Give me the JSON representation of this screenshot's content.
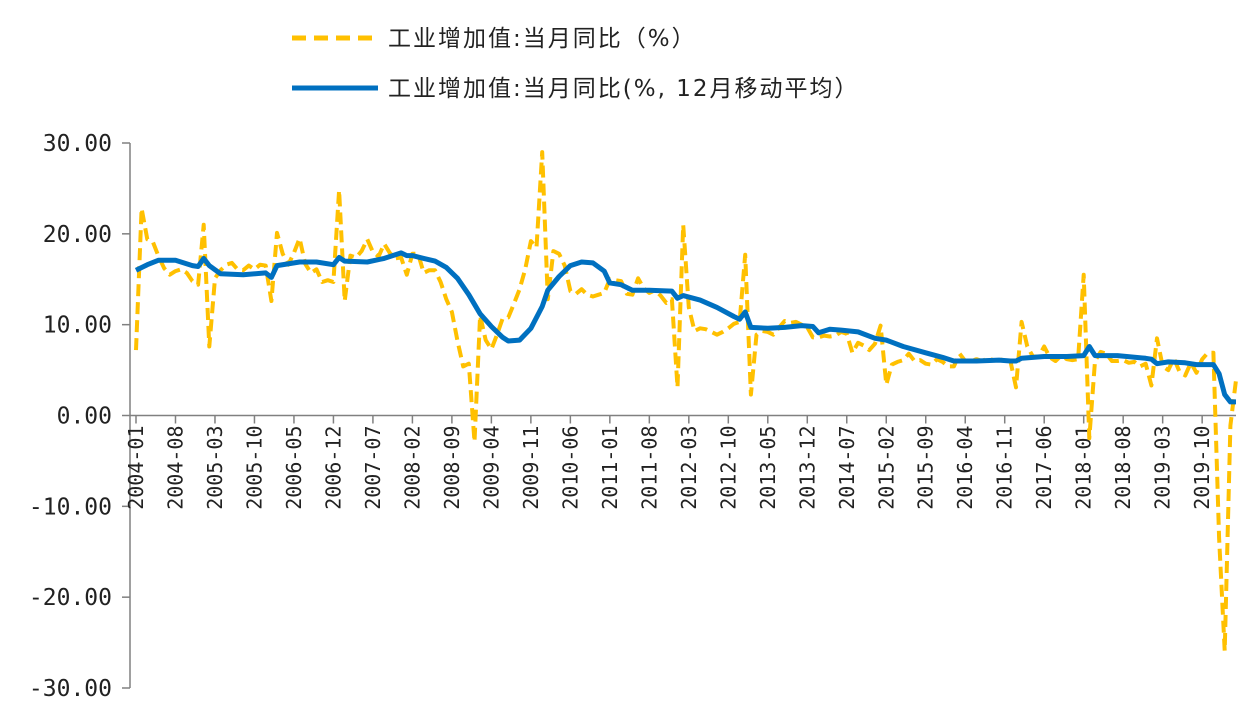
{
  "chart_data": {
    "type": "line",
    "title": "",
    "xlabel": "",
    "ylabel": "",
    "ylim": [
      -30,
      30
    ],
    "yticks": [
      -30,
      -20,
      -10,
      0,
      10,
      20,
      30
    ],
    "ytick_labels": [
      "-30.00",
      "-20.00",
      "-10.00",
      "0.00",
      "10.00",
      "20.00",
      "30.00"
    ],
    "x_start": "2004-01",
    "x_end": "2020-04",
    "xtick_labels": [
      "2004-01",
      "2004-08",
      "2005-03",
      "2005-10",
      "2006-05",
      "2006-12",
      "2007-07",
      "2008-02",
      "2008-09",
      "2009-04",
      "2009-11",
      "2010-06",
      "2011-01",
      "2011-08",
      "2012-03",
      "2012-10",
      "2013-05",
      "2013-12",
      "2014-07",
      "2015-02",
      "2015-09",
      "2016-04",
      "2016-11",
      "2017-06",
      "2018-01",
      "2018-08",
      "2019-03",
      "2019-10"
    ],
    "legend_position": "top",
    "grid": false,
    "series": [
      {
        "name": "工业增加值:当月同比（%）",
        "color": "#FFC000",
        "style": "dashed",
        "points": [
          [
            "2004-01",
            7.2
          ],
          [
            "2004-02",
            22.8
          ],
          [
            "2004-03",
            19.4
          ],
          [
            "2004-04",
            19.1
          ],
          [
            "2004-05",
            17.5
          ],
          [
            "2004-06",
            16.2
          ],
          [
            "2004-07",
            15.5
          ],
          [
            "2004-08",
            15.9
          ],
          [
            "2004-09",
            16.1
          ],
          [
            "2004-10",
            15.7
          ],
          [
            "2004-11",
            14.8
          ],
          [
            "2004-12",
            14.4
          ],
          [
            "2005-01",
            21.0
          ],
          [
            "2005-02",
            7.6
          ],
          [
            "2005-03",
            15.1
          ],
          [
            "2005-04",
            16.0
          ],
          [
            "2005-05",
            16.6
          ],
          [
            "2005-06",
            16.8
          ],
          [
            "2005-07",
            16.1
          ],
          [
            "2005-08",
            16.0
          ],
          [
            "2005-09",
            16.5
          ],
          [
            "2005-10",
            16.1
          ],
          [
            "2005-11",
            16.6
          ],
          [
            "2005-12",
            16.5
          ],
          [
            "2006-01",
            12.6
          ],
          [
            "2006-02",
            20.1
          ],
          [
            "2006-03",
            17.8
          ],
          [
            "2006-04",
            16.6
          ],
          [
            "2006-05",
            17.9
          ],
          [
            "2006-06",
            19.5
          ],
          [
            "2006-07",
            16.7
          ],
          [
            "2006-08",
            15.7
          ],
          [
            "2006-09",
            16.1
          ],
          [
            "2006-10",
            14.7
          ],
          [
            "2006-11",
            14.9
          ],
          [
            "2006-12",
            14.7
          ],
          [
            "2007-01",
            24.8
          ],
          [
            "2007-02",
            12.6
          ],
          [
            "2007-03",
            17.6
          ],
          [
            "2007-04",
            17.4
          ],
          [
            "2007-05",
            18.1
          ],
          [
            "2007-06",
            19.4
          ],
          [
            "2007-07",
            18.0
          ],
          [
            "2007-08",
            17.5
          ],
          [
            "2007-09",
            18.9
          ],
          [
            "2007-10",
            17.9
          ],
          [
            "2007-11",
            17.3
          ],
          [
            "2007-12",
            17.4
          ],
          [
            "2008-01",
            15.5
          ],
          [
            "2008-02",
            17.8
          ],
          [
            "2008-03",
            17.8
          ],
          [
            "2008-04",
            15.7
          ],
          [
            "2008-05",
            16.0
          ],
          [
            "2008-06",
            16.0
          ],
          [
            "2008-07",
            14.7
          ],
          [
            "2008-08",
            12.8
          ],
          [
            "2008-09",
            11.4
          ],
          [
            "2008-10",
            8.2
          ],
          [
            "2008-11",
            5.4
          ],
          [
            "2008-12",
            5.7
          ],
          [
            "2009-01",
            -2.9
          ],
          [
            "2009-02",
            11.0
          ],
          [
            "2009-03",
            8.3
          ],
          [
            "2009-04",
            7.3
          ],
          [
            "2009-05",
            8.9
          ],
          [
            "2009-06",
            10.7
          ],
          [
            "2009-07",
            10.8
          ],
          [
            "2009-08",
            12.3
          ],
          [
            "2009-09",
            13.9
          ],
          [
            "2009-10",
            16.1
          ],
          [
            "2009-11",
            19.2
          ],
          [
            "2009-12",
            18.5
          ],
          [
            "2010-01",
            29.0
          ],
          [
            "2010-02",
            12.8
          ],
          [
            "2010-03",
            18.1
          ],
          [
            "2010-04",
            17.8
          ],
          [
            "2010-05",
            16.5
          ],
          [
            "2010-06",
            13.7
          ],
          [
            "2010-07",
            13.4
          ],
          [
            "2010-08",
            13.9
          ],
          [
            "2010-09",
            13.3
          ],
          [
            "2010-10",
            13.1
          ],
          [
            "2010-11",
            13.3
          ],
          [
            "2010-12",
            13.5
          ],
          [
            "2011-01",
            15.0
          ],
          [
            "2011-02",
            14.9
          ],
          [
            "2011-03",
            14.8
          ],
          [
            "2011-04",
            13.4
          ],
          [
            "2011-05",
            13.3
          ],
          [
            "2011-06",
            15.1
          ],
          [
            "2011-07",
            14.0
          ],
          [
            "2011-08",
            13.5
          ],
          [
            "2011-09",
            13.8
          ],
          [
            "2011-10",
            13.2
          ],
          [
            "2011-11",
            12.4
          ],
          [
            "2011-12",
            12.8
          ],
          [
            "2012-01",
            3.1
          ],
          [
            "2012-02",
            21.0
          ],
          [
            "2012-03",
            11.9
          ],
          [
            "2012-04",
            9.3
          ],
          [
            "2012-05",
            9.6
          ],
          [
            "2012-06",
            9.5
          ],
          [
            "2012-07",
            9.2
          ],
          [
            "2012-08",
            8.9
          ],
          [
            "2012-09",
            9.2
          ],
          [
            "2012-10",
            9.6
          ],
          [
            "2012-11",
            10.1
          ],
          [
            "2012-12",
            10.3
          ],
          [
            "2013-01",
            17.7
          ],
          [
            "2013-02",
            2.3
          ],
          [
            "2013-03",
            8.9
          ],
          [
            "2013-04",
            9.3
          ],
          [
            "2013-05",
            9.2
          ],
          [
            "2013-06",
            8.9
          ],
          [
            "2013-07",
            9.7
          ],
          [
            "2013-08",
            10.4
          ],
          [
            "2013-09",
            10.2
          ],
          [
            "2013-10",
            10.3
          ],
          [
            "2013-11",
            10.0
          ],
          [
            "2013-12",
            9.7
          ],
          [
            "2014-01",
            8.6
          ],
          [
            "2014-02",
            8.6
          ],
          [
            "2014-03",
            8.8
          ],
          [
            "2014-04",
            8.7
          ],
          [
            "2014-05",
            8.8
          ],
          [
            "2014-06",
            9.2
          ],
          [
            "2014-07",
            9.0
          ],
          [
            "2014-08",
            6.9
          ],
          [
            "2014-09",
            8.0
          ],
          [
            "2014-10",
            7.7
          ],
          [
            "2014-11",
            7.2
          ],
          [
            "2014-12",
            7.9
          ],
          [
            "2015-01",
            9.9
          ],
          [
            "2015-02",
            3.4
          ],
          [
            "2015-03",
            5.6
          ],
          [
            "2015-04",
            5.9
          ],
          [
            "2015-05",
            6.1
          ],
          [
            "2015-06",
            6.8
          ],
          [
            "2015-07",
            6.0
          ],
          [
            "2015-08",
            6.1
          ],
          [
            "2015-09",
            5.7
          ],
          [
            "2015-10",
            5.6
          ],
          [
            "2015-11",
            6.2
          ],
          [
            "2015-12",
            5.9
          ],
          [
            "2016-01",
            5.4
          ],
          [
            "2016-02",
            5.4
          ],
          [
            "2016-03",
            6.8
          ],
          [
            "2016-04",
            6.0
          ],
          [
            "2016-05",
            6.0
          ],
          [
            "2016-06",
            6.2
          ],
          [
            "2016-07",
            6.0
          ],
          [
            "2016-08",
            6.3
          ],
          [
            "2016-09",
            6.1
          ],
          [
            "2016-10",
            6.1
          ],
          [
            "2016-11",
            6.2
          ],
          [
            "2016-12",
            6.0
          ],
          [
            "2017-01",
            3.1
          ],
          [
            "2017-02",
            10.3
          ],
          [
            "2017-03",
            7.6
          ],
          [
            "2017-04",
            6.5
          ],
          [
            "2017-05",
            6.5
          ],
          [
            "2017-06",
            7.6
          ],
          [
            "2017-07",
            6.4
          ],
          [
            "2017-08",
            6.0
          ],
          [
            "2017-09",
            6.6
          ],
          [
            "2017-10",
            6.2
          ],
          [
            "2017-11",
            6.1
          ],
          [
            "2017-12",
            6.2
          ],
          [
            "2018-01",
            15.5
          ],
          [
            "2018-02",
            -2.5
          ],
          [
            "2018-03",
            6.0
          ],
          [
            "2018-04",
            7.0
          ],
          [
            "2018-05",
            6.8
          ],
          [
            "2018-06",
            6.0
          ],
          [
            "2018-07",
            6.0
          ],
          [
            "2018-08",
            6.1
          ],
          [
            "2018-09",
            5.8
          ],
          [
            "2018-10",
            5.9
          ],
          [
            "2018-11",
            5.4
          ],
          [
            "2018-12",
            5.7
          ],
          [
            "2019-01",
            3.3
          ],
          [
            "2019-02",
            8.5
          ],
          [
            "2019-03",
            5.4
          ],
          [
            "2019-04",
            5.0
          ],
          [
            "2019-05",
            6.3
          ],
          [
            "2019-06",
            4.8
          ],
          [
            "2019-07",
            4.4
          ],
          [
            "2019-08",
            5.8
          ],
          [
            "2019-09",
            4.7
          ],
          [
            "2019-10",
            6.2
          ],
          [
            "2019-11",
            6.9
          ],
          [
            "2019-12",
            6.9
          ],
          [
            "2020-01",
            -13.5
          ],
          [
            "2020-02",
            -25.9
          ],
          [
            "2020-03",
            -1.1
          ],
          [
            "2020-04",
            3.9
          ]
        ]
      },
      {
        "name": "工业增加值:当月同比(%, 12月移动平均）",
        "color": "#0070C0",
        "style": "solid",
        "points": [
          [
            "2004-01",
            16.0
          ],
          [
            "2004-03",
            16.6
          ],
          [
            "2004-05",
            17.1
          ],
          [
            "2004-08",
            17.1
          ],
          [
            "2004-11",
            16.5
          ],
          [
            "2004-12",
            16.4
          ],
          [
            "2005-01",
            17.3
          ],
          [
            "2005-02",
            16.5
          ],
          [
            "2005-04",
            15.6
          ],
          [
            "2005-08",
            15.5
          ],
          [
            "2005-12",
            15.7
          ],
          [
            "2006-01",
            15.2
          ],
          [
            "2006-02",
            16.5
          ],
          [
            "2006-06",
            16.9
          ],
          [
            "2006-09",
            16.9
          ],
          [
            "2006-12",
            16.6
          ],
          [
            "2007-01",
            17.4
          ],
          [
            "2007-02",
            17.0
          ],
          [
            "2007-06",
            16.9
          ],
          [
            "2007-09",
            17.3
          ],
          [
            "2007-12",
            17.9
          ],
          [
            "2008-01",
            17.6
          ],
          [
            "2008-02",
            17.6
          ],
          [
            "2008-04",
            17.3
          ],
          [
            "2008-06",
            17.0
          ],
          [
            "2008-08",
            16.3
          ],
          [
            "2008-10",
            15.1
          ],
          [
            "2008-12",
            13.3
          ],
          [
            "2009-02",
            11.2
          ],
          [
            "2009-04",
            9.8
          ],
          [
            "2009-06",
            8.6
          ],
          [
            "2009-07",
            8.2
          ],
          [
            "2009-09",
            8.3
          ],
          [
            "2009-11",
            9.6
          ],
          [
            "2010-01",
            12.0
          ],
          [
            "2010-02",
            13.8
          ],
          [
            "2010-04",
            15.3
          ],
          [
            "2010-06",
            16.5
          ],
          [
            "2010-08",
            16.9
          ],
          [
            "2010-10",
            16.8
          ],
          [
            "2010-12",
            15.9
          ],
          [
            "2011-01",
            14.6
          ],
          [
            "2011-03",
            14.4
          ],
          [
            "2011-05",
            13.8
          ],
          [
            "2011-08",
            13.8
          ],
          [
            "2011-12",
            13.7
          ],
          [
            "2012-01",
            12.9
          ],
          [
            "2012-02",
            13.2
          ],
          [
            "2012-05",
            12.7
          ],
          [
            "2012-08",
            11.9
          ],
          [
            "2012-11",
            10.9
          ],
          [
            "2012-12",
            10.6
          ],
          [
            "2013-01",
            11.4
          ],
          [
            "2013-02",
            9.7
          ],
          [
            "2013-05",
            9.6
          ],
          [
            "2013-08",
            9.7
          ],
          [
            "2013-11",
            9.9
          ],
          [
            "2014-01",
            9.8
          ],
          [
            "2014-02",
            9.1
          ],
          [
            "2014-04",
            9.5
          ],
          [
            "2014-06",
            9.4
          ],
          [
            "2014-09",
            9.2
          ],
          [
            "2014-12",
            8.5
          ],
          [
            "2015-02",
            8.3
          ],
          [
            "2015-05",
            7.6
          ],
          [
            "2015-09",
            6.9
          ],
          [
            "2015-12",
            6.4
          ],
          [
            "2016-02",
            6.0
          ],
          [
            "2016-06",
            6.0
          ],
          [
            "2016-10",
            6.1
          ],
          [
            "2016-12",
            6.0
          ],
          [
            "2017-01",
            6.0
          ],
          [
            "2017-02",
            6.3
          ],
          [
            "2017-06",
            6.5
          ],
          [
            "2017-10",
            6.5
          ],
          [
            "2018-01",
            6.6
          ],
          [
            "2018-02",
            7.6
          ],
          [
            "2018-03",
            6.6
          ],
          [
            "2018-07",
            6.6
          ],
          [
            "2018-12",
            6.3
          ],
          [
            "2019-01",
            6.2
          ],
          [
            "2019-02",
            5.7
          ],
          [
            "2019-04",
            5.9
          ],
          [
            "2019-07",
            5.8
          ],
          [
            "2019-09",
            5.6
          ],
          [
            "2019-12",
            5.6
          ],
          [
            "2020-01",
            4.6
          ],
          [
            "2020-02",
            2.3
          ],
          [
            "2020-03",
            1.5
          ],
          [
            "2020-04",
            1.5
          ]
        ]
      }
    ]
  }
}
